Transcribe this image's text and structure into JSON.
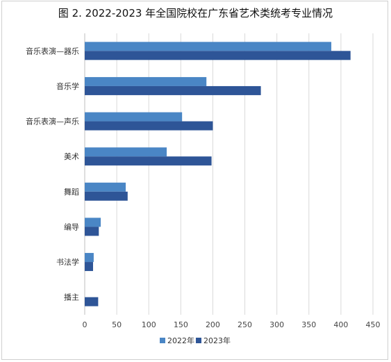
{
  "chart_data": {
    "type": "bar",
    "orientation": "horizontal",
    "title": "图 2. 2022-2023 年全国院校在广东省艺术类统考专业情况",
    "categories": [
      "音乐表演—器乐",
      "音乐学",
      "音乐表演—声乐",
      "美术",
      "舞蹈",
      "编导",
      "书法学",
      "播主"
    ],
    "series": [
      {
        "name": "2022年",
        "color": "#4a86c5",
        "values": [
          385,
          190,
          152,
          128,
          64,
          25,
          14,
          0
        ]
      },
      {
        "name": "2023年",
        "color": "#2e5597",
        "values": [
          415,
          275,
          200,
          198,
          67,
          22,
          13,
          21
        ]
      }
    ],
    "xlim": [
      0,
      450
    ],
    "xticks": [
      0,
      50,
      100,
      150,
      200,
      250,
      300,
      350,
      400,
      450
    ],
    "grid": "vertical",
    "legend_position": "bottom"
  }
}
